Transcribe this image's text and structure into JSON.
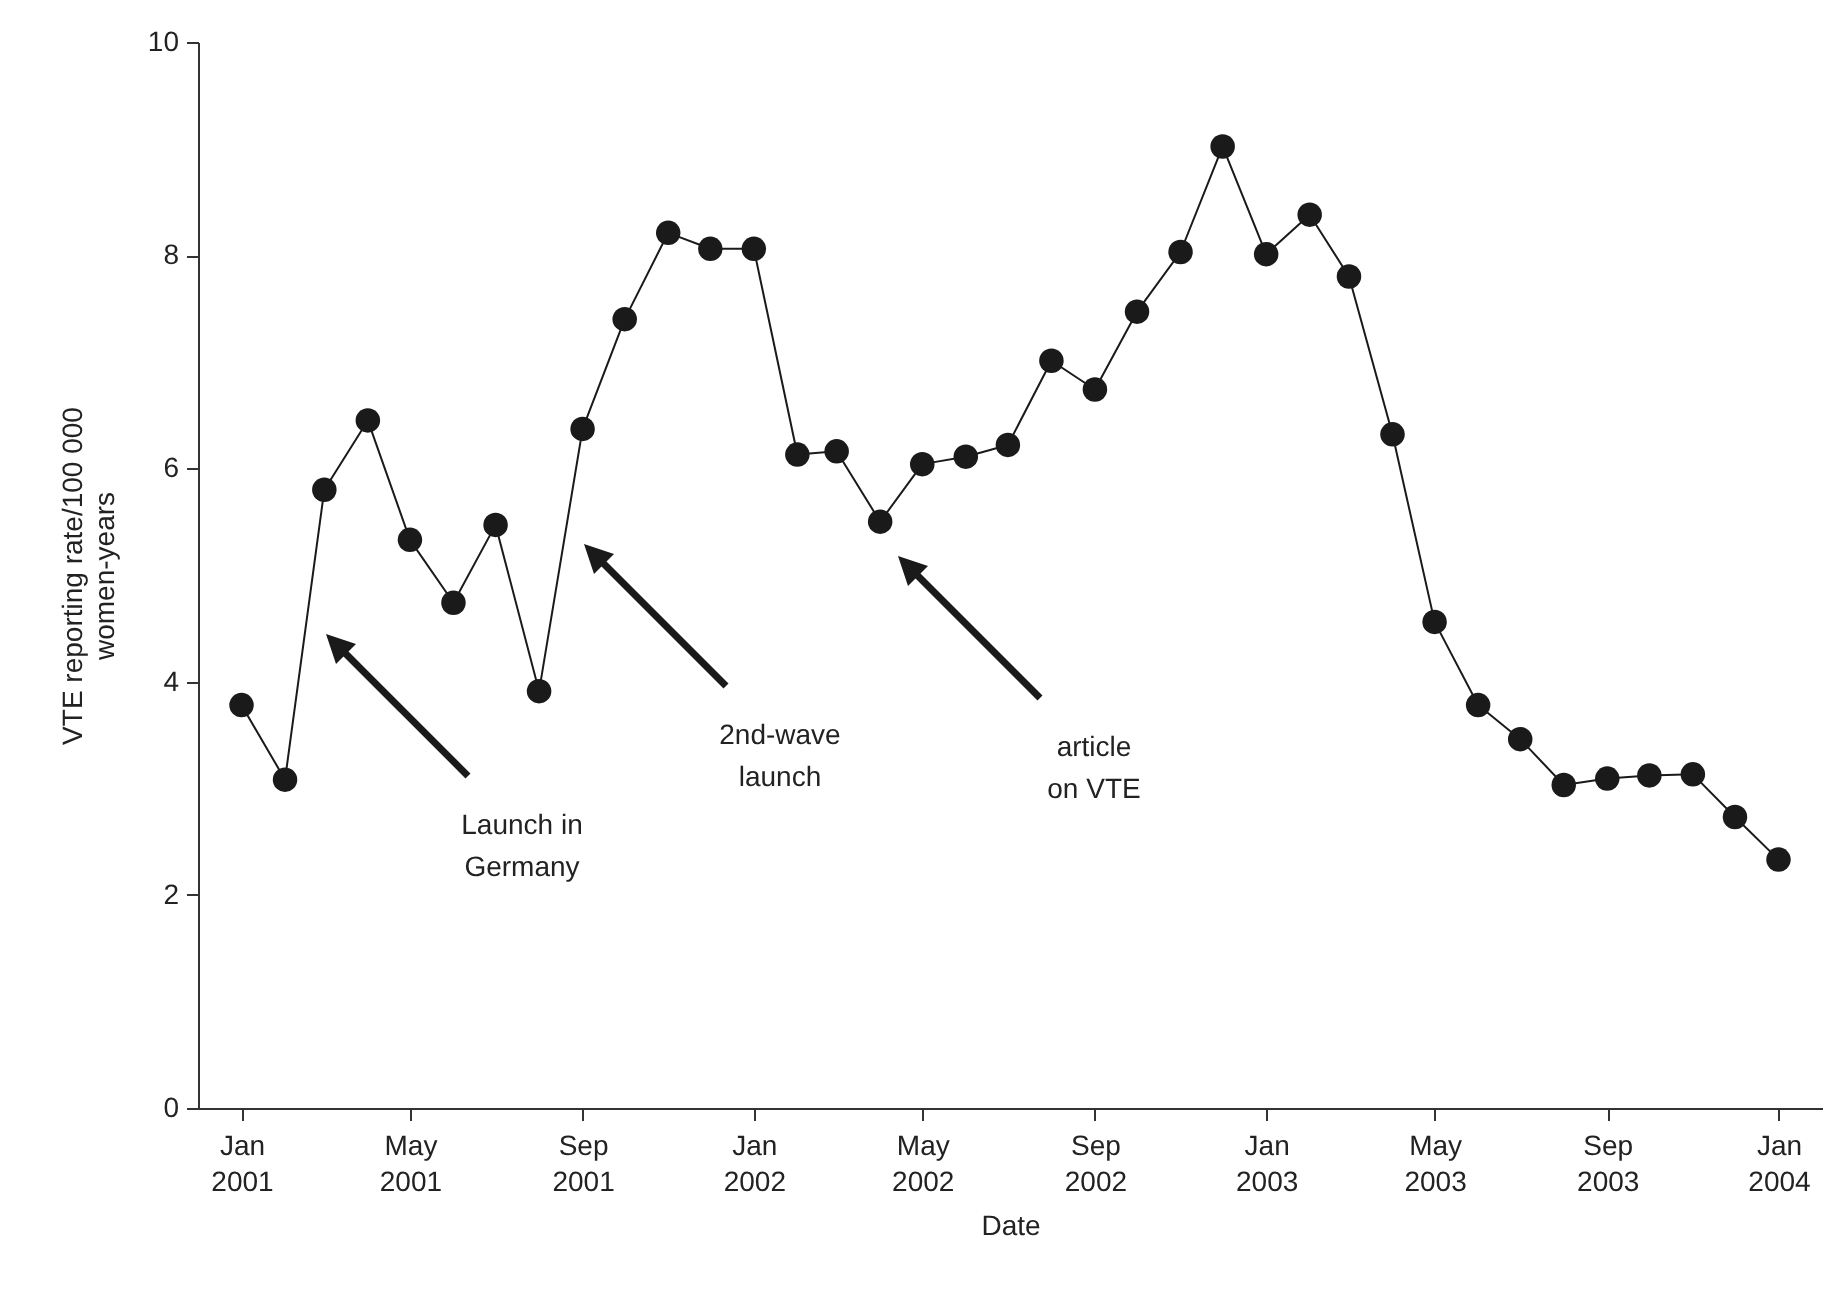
{
  "chart_data": {
    "type": "line",
    "xlabel": "Date",
    "ylabel": "VTE reporting rate/100 000 women-years",
    "x": [
      "2001-01",
      "2001-02",
      "2001-03",
      "2001-04",
      "2001-05",
      "2001-06",
      "2001-07",
      "2001-08",
      "2001-09",
      "2001-10",
      "2001-11",
      "2001-12",
      "2002-01",
      "2002-02",
      "2002-03",
      "2002-04",
      "2002-05",
      "2002-06",
      "2002-07",
      "2002-08",
      "2002-09",
      "2002-10",
      "2002-11",
      "2002-12",
      "2003-01",
      "2003-02",
      "2003-03",
      "2003-04",
      "2003-05",
      "2003-06",
      "2003-07",
      "2003-08",
      "2003-09",
      "2003-10",
      "2003-11",
      "2003-12",
      "2004-01"
    ],
    "series": [
      {
        "color": "#1a1a1a",
        "values": [
          3.78,
          3.08,
          5.8,
          6.45,
          5.33,
          4.74,
          5.47,
          3.91,
          6.37,
          7.4,
          8.21,
          8.06,
          8.06,
          6.13,
          6.16,
          5.5,
          6.04,
          6.11,
          6.22,
          7.01,
          6.74,
          7.47,
          8.03,
          9.02,
          8.01,
          8.38,
          7.8,
          6.32,
          4.56,
          3.78,
          3.46,
          3.03,
          3.09,
          3.12,
          3.13,
          2.73,
          2.33
        ]
      }
    ],
    "marker": "circle",
    "grid": false,
    "line_style": "solid",
    "xlim": [
      "2000-12",
      "2004-02"
    ],
    "ylim": [
      0,
      10
    ],
    "xticks": [
      {
        "value": "2001-01",
        "label": "Jan 2001"
      },
      {
        "value": "2001-05",
        "label": "May 2001"
      },
      {
        "value": "2001-09",
        "label": "Sep 2001"
      },
      {
        "value": "2002-01",
        "label": "Jan 2002"
      },
      {
        "value": "2002-05",
        "label": "May 2002"
      },
      {
        "value": "2002-09",
        "label": "Sep 2002"
      },
      {
        "value": "2003-01",
        "label": "Jan 2003"
      },
      {
        "value": "2003-05",
        "label": "May 2003"
      },
      {
        "value": "2003-09",
        "label": "Sep 2003"
      },
      {
        "value": "2004-01",
        "label": "Jan 2004"
      }
    ],
    "yticks": [
      0,
      2,
      4,
      6,
      8,
      10
    ],
    "annotations": [
      "Launch in Germany",
      "2nd-wave launch",
      "article on VTE"
    ]
  }
}
